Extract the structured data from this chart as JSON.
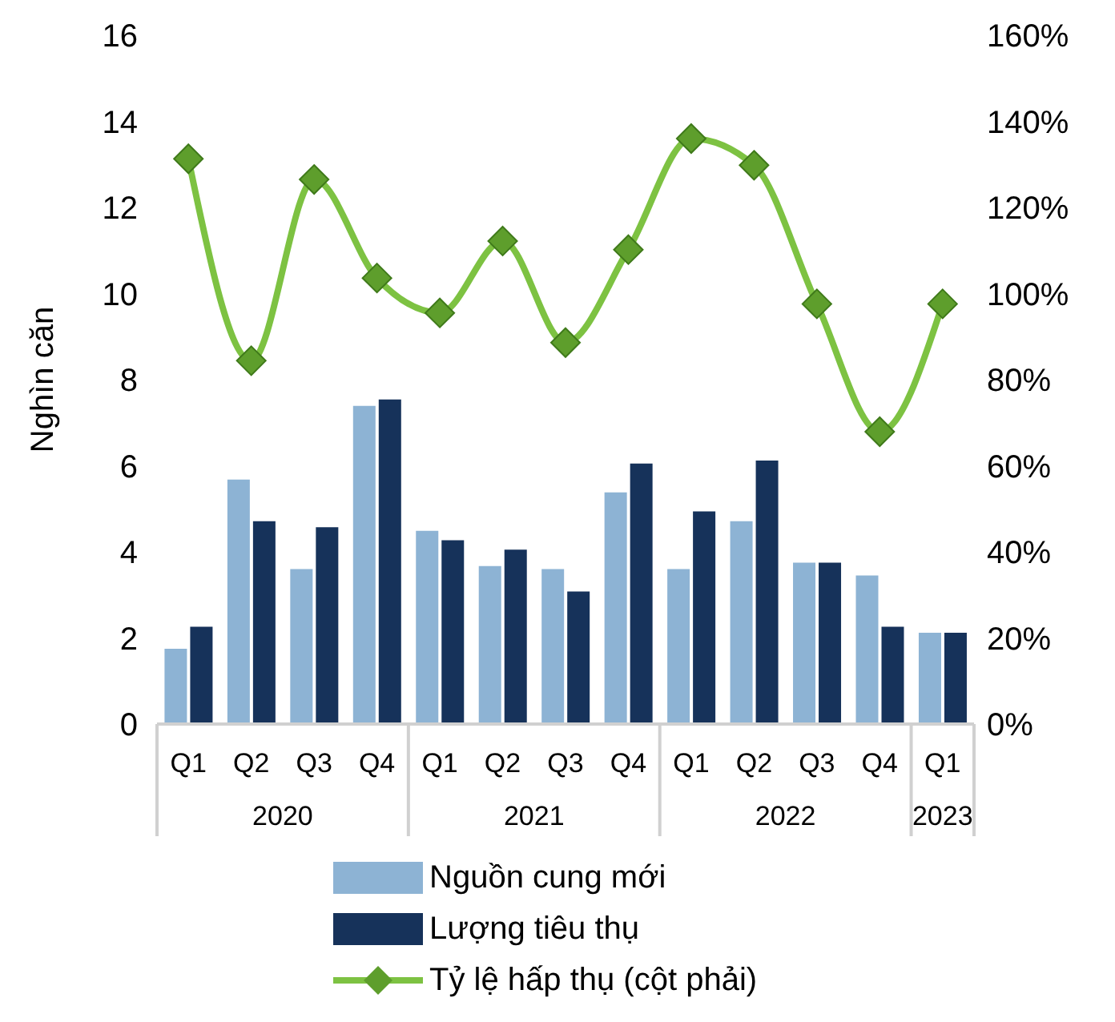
{
  "chart_data": {
    "type": "bar",
    "ylabel": "Nghìn căn",
    "categories": [
      "Q1",
      "Q2",
      "Q3",
      "Q4",
      "Q1",
      "Q2",
      "Q3",
      "Q4",
      "Q1",
      "Q2",
      "Q3",
      "Q4",
      "Q1"
    ],
    "annotations": [
      "2020",
      "2021",
      "2022",
      "2023"
    ],
    "series": [
      {
        "name": "Nguồn cung mới",
        "color": "#8db3d4",
        "values": [
          1.75,
          5.68,
          3.6,
          7.39,
          4.49,
          3.67,
          3.6,
          5.38,
          3.6,
          4.71,
          3.75,
          3.45,
          2.12
        ]
      },
      {
        "name": "Lượng tiêu thụ",
        "color": "#16325a",
        "values": [
          2.26,
          4.71,
          4.57,
          7.54,
          4.27,
          4.05,
          3.08,
          6.05,
          4.94,
          6.12,
          3.75,
          2.26,
          2.12
        ]
      },
      {
        "name": "Tỷ lệ hấp thụ (cột phải)",
        "type": "line",
        "axis": "y2",
        "color": "#7dc242",
        "marker": "diamond",
        "values": [
          131.3,
          84.4,
          126.5,
          103.6,
          95.5,
          112.2,
          88.6,
          110.2,
          136,
          129.8,
          97.6,
          67.9,
          97.6
        ]
      }
    ],
    "ylim": [
      0,
      16
    ],
    "yticks": [
      0,
      2,
      4,
      6,
      8,
      10,
      12,
      14,
      16
    ],
    "y2lim": [
      0,
      160
    ],
    "y2ticks": [
      {
        "value": 0,
        "label": "0%"
      },
      {
        "value": 20,
        "label": "20%"
      },
      {
        "value": 40,
        "label": "40%"
      },
      {
        "value": 60,
        "label": "60%"
      },
      {
        "value": 80,
        "label": "80%"
      },
      {
        "value": 100,
        "label": "100%"
      },
      {
        "value": 120,
        "label": "120%"
      },
      {
        "value": 140,
        "label": "140%"
      },
      {
        "value": 160,
        "label": "160%"
      }
    ],
    "legend": "bottom",
    "grid": false
  }
}
